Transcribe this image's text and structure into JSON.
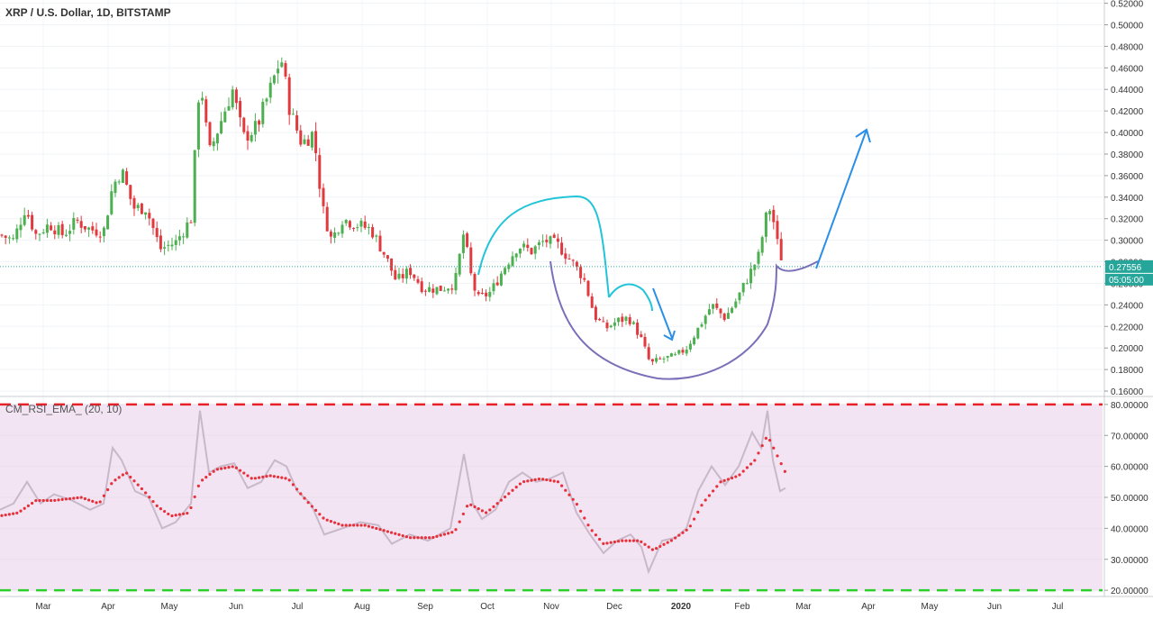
{
  "symbol_label": "XRP / U.S. Dollar, 1D, BITSTAMP",
  "indicator_label": "CM_RSI_EMA_ (20, 10)",
  "colors": {
    "up": "#4caf50",
    "down": "#e0393e",
    "rsi_band": "#f2e4f2",
    "rsi_line": "#c9b8c9",
    "rsi_ema": "#e8303a",
    "level_high": "#e8202a",
    "level_low": "#2ccf2c",
    "price_line": "#26a69a",
    "price_badge": "#26a69a",
    "drawing_teal": "#22c4d8",
    "drawing_blue": "#2a8fe8",
    "drawing_purple": "#7a6fb8"
  },
  "chart_data": [
    {
      "type": "candlestick",
      "title": "XRP / U.S. Dollar, 1D, BITSTAMP",
      "x_ticks": [
        "Mar",
        "Apr",
        "May",
        "Jun",
        "Jul",
        "Aug",
        "Sep",
        "Oct",
        "Nov",
        "Dec",
        "2020",
        "Feb",
        "Mar",
        "Apr",
        "May",
        "Jun",
        "Jul"
      ],
      "y_ticks": [
        "0.52000",
        "0.50000",
        "0.48000",
        "0.46000",
        "0.44000",
        "0.42000",
        "0.40000",
        "0.38000",
        "0.36000",
        "0.34000",
        "0.32000",
        "0.30000",
        "0.28000",
        "0.26000",
        "0.24000",
        "0.22000",
        "0.20000",
        "0.18000",
        "0.16000"
      ],
      "ylim": [
        0.155,
        0.523
      ],
      "last_price": "0.27556",
      "countdown": "05:05:00",
      "close_series": [
        {
          "x": 0,
          "y": 0.305
        },
        {
          "x": 15,
          "y": 0.3
        },
        {
          "x": 28,
          "y": 0.33
        },
        {
          "x": 40,
          "y": 0.305
        },
        {
          "x": 55,
          "y": 0.315
        },
        {
          "x": 70,
          "y": 0.305
        },
        {
          "x": 85,
          "y": 0.318
        },
        {
          "x": 100,
          "y": 0.31
        },
        {
          "x": 115,
          "y": 0.308
        },
        {
          "x": 125,
          "y": 0.35
        },
        {
          "x": 135,
          "y": 0.365
        },
        {
          "x": 148,
          "y": 0.33
        },
        {
          "x": 162,
          "y": 0.33
        },
        {
          "x": 178,
          "y": 0.292
        },
        {
          "x": 195,
          "y": 0.298
        },
        {
          "x": 212,
          "y": 0.32
        },
        {
          "x": 222,
          "y": 0.455
        },
        {
          "x": 232,
          "y": 0.38
        },
        {
          "x": 245,
          "y": 0.41
        },
        {
          "x": 258,
          "y": 0.44
        },
        {
          "x": 270,
          "y": 0.395
        },
        {
          "x": 285,
          "y": 0.405
        },
        {
          "x": 298,
          "y": 0.435
        },
        {
          "x": 312,
          "y": 0.47
        },
        {
          "x": 322,
          "y": 0.42
        },
        {
          "x": 335,
          "y": 0.39
        },
        {
          "x": 348,
          "y": 0.4
        },
        {
          "x": 358,
          "y": 0.33
        },
        {
          "x": 368,
          "y": 0.3
        },
        {
          "x": 380,
          "y": 0.32
        },
        {
          "x": 395,
          "y": 0.315
        },
        {
          "x": 412,
          "y": 0.31
        },
        {
          "x": 428,
          "y": 0.285
        },
        {
          "x": 440,
          "y": 0.262
        },
        {
          "x": 455,
          "y": 0.272
        },
        {
          "x": 470,
          "y": 0.255
        },
        {
          "x": 490,
          "y": 0.255
        },
        {
          "x": 505,
          "y": 0.26
        },
        {
          "x": 515,
          "y": 0.308
        },
        {
          "x": 522,
          "y": 0.27
        },
        {
          "x": 530,
          "y": 0.245
        },
        {
          "x": 545,
          "y": 0.252
        },
        {
          "x": 560,
          "y": 0.275
        },
        {
          "x": 575,
          "y": 0.295
        },
        {
          "x": 590,
          "y": 0.29
        },
        {
          "x": 605,
          "y": 0.3
        },
        {
          "x": 620,
          "y": 0.295
        },
        {
          "x": 635,
          "y": 0.28
        },
        {
          "x": 648,
          "y": 0.265
        },
        {
          "x": 660,
          "y": 0.23
        },
        {
          "x": 672,
          "y": 0.218
        },
        {
          "x": 685,
          "y": 0.225
        },
        {
          "x": 698,
          "y": 0.228
        },
        {
          "x": 710,
          "y": 0.212
        },
        {
          "x": 722,
          "y": 0.185
        },
        {
          "x": 735,
          "y": 0.19
        },
        {
          "x": 750,
          "y": 0.192
        },
        {
          "x": 762,
          "y": 0.2
        },
        {
          "x": 775,
          "y": 0.218
        },
        {
          "x": 790,
          "y": 0.24
        },
        {
          "x": 805,
          "y": 0.228
        },
        {
          "x": 818,
          "y": 0.245
        },
        {
          "x": 830,
          "y": 0.265
        },
        {
          "x": 842,
          "y": 0.285
        },
        {
          "x": 850,
          "y": 0.32
        },
        {
          "x": 856,
          "y": 0.332
        },
        {
          "x": 862,
          "y": 0.3
        },
        {
          "x": 870,
          "y": 0.276
        }
      ]
    },
    {
      "type": "line",
      "title": "CM_RSI_EMA_ (20, 10)",
      "y_ticks": [
        "80.00000",
        "70.00000",
        "60.00000",
        "50.00000",
        "40.00000",
        "30.00000",
        "20.00000"
      ],
      "ylim": [
        18,
        82
      ],
      "levels": [
        80,
        20
      ],
      "series": [
        {
          "name": "RSI",
          "points": [
            {
              "x": 0,
              "y": 46
            },
            {
              "x": 15,
              "y": 48
            },
            {
              "x": 30,
              "y": 55
            },
            {
              "x": 45,
              "y": 48
            },
            {
              "x": 60,
              "y": 51
            },
            {
              "x": 80,
              "y": 49
            },
            {
              "x": 100,
              "y": 46
            },
            {
              "x": 115,
              "y": 48
            },
            {
              "x": 125,
              "y": 66
            },
            {
              "x": 135,
              "y": 62
            },
            {
              "x": 150,
              "y": 52
            },
            {
              "x": 165,
              "y": 50
            },
            {
              "x": 180,
              "y": 40
            },
            {
              "x": 195,
              "y": 42
            },
            {
              "x": 212,
              "y": 48
            },
            {
              "x": 222,
              "y": 78
            },
            {
              "x": 232,
              "y": 58
            },
            {
              "x": 245,
              "y": 60
            },
            {
              "x": 260,
              "y": 61
            },
            {
              "x": 275,
              "y": 53
            },
            {
              "x": 290,
              "y": 55
            },
            {
              "x": 305,
              "y": 62
            },
            {
              "x": 318,
              "y": 60
            },
            {
              "x": 330,
              "y": 52
            },
            {
              "x": 345,
              "y": 48
            },
            {
              "x": 360,
              "y": 38
            },
            {
              "x": 380,
              "y": 40
            },
            {
              "x": 400,
              "y": 42
            },
            {
              "x": 420,
              "y": 41
            },
            {
              "x": 435,
              "y": 35
            },
            {
              "x": 455,
              "y": 38
            },
            {
              "x": 475,
              "y": 36
            },
            {
              "x": 500,
              "y": 40
            },
            {
              "x": 515,
              "y": 64
            },
            {
              "x": 525,
              "y": 48
            },
            {
              "x": 535,
              "y": 43
            },
            {
              "x": 550,
              "y": 46
            },
            {
              "x": 565,
              "y": 55
            },
            {
              "x": 580,
              "y": 58
            },
            {
              "x": 595,
              "y": 55
            },
            {
              "x": 610,
              "y": 56
            },
            {
              "x": 625,
              "y": 58
            },
            {
              "x": 640,
              "y": 45
            },
            {
              "x": 655,
              "y": 38
            },
            {
              "x": 670,
              "y": 32
            },
            {
              "x": 685,
              "y": 36
            },
            {
              "x": 700,
              "y": 38
            },
            {
              "x": 712,
              "y": 34
            },
            {
              "x": 720,
              "y": 26
            },
            {
              "x": 735,
              "y": 36
            },
            {
              "x": 750,
              "y": 37
            },
            {
              "x": 762,
              "y": 40
            },
            {
              "x": 775,
              "y": 52
            },
            {
              "x": 790,
              "y": 60
            },
            {
              "x": 805,
              "y": 54
            },
            {
              "x": 820,
              "y": 60
            },
            {
              "x": 835,
              "y": 71
            },
            {
              "x": 845,
              "y": 66
            },
            {
              "x": 852,
              "y": 78
            },
            {
              "x": 858,
              "y": 62
            },
            {
              "x": 866,
              "y": 52
            },
            {
              "x": 872,
              "y": 53
            }
          ]
        },
        {
          "name": "EMA",
          "points": [
            {
              "x": 0,
              "y": 44
            },
            {
              "x": 20,
              "y": 45
            },
            {
              "x": 40,
              "y": 49
            },
            {
              "x": 60,
              "y": 49
            },
            {
              "x": 90,
              "y": 50
            },
            {
              "x": 110,
              "y": 48
            },
            {
              "x": 125,
              "y": 55
            },
            {
              "x": 140,
              "y": 58
            },
            {
              "x": 160,
              "y": 52
            },
            {
              "x": 175,
              "y": 47
            },
            {
              "x": 190,
              "y": 44
            },
            {
              "x": 210,
              "y": 45
            },
            {
              "x": 222,
              "y": 55
            },
            {
              "x": 240,
              "y": 59
            },
            {
              "x": 260,
              "y": 60
            },
            {
              "x": 280,
              "y": 56
            },
            {
              "x": 300,
              "y": 57
            },
            {
              "x": 320,
              "y": 56
            },
            {
              "x": 340,
              "y": 49
            },
            {
              "x": 360,
              "y": 43
            },
            {
              "x": 380,
              "y": 41
            },
            {
              "x": 405,
              "y": 41
            },
            {
              "x": 430,
              "y": 39
            },
            {
              "x": 455,
              "y": 37
            },
            {
              "x": 480,
              "y": 37
            },
            {
              "x": 505,
              "y": 39
            },
            {
              "x": 520,
              "y": 48
            },
            {
              "x": 540,
              "y": 45
            },
            {
              "x": 560,
              "y": 50
            },
            {
              "x": 580,
              "y": 55
            },
            {
              "x": 600,
              "y": 56
            },
            {
              "x": 620,
              "y": 55
            },
            {
              "x": 640,
              "y": 48
            },
            {
              "x": 655,
              "y": 40
            },
            {
              "x": 670,
              "y": 35
            },
            {
              "x": 690,
              "y": 36
            },
            {
              "x": 710,
              "y": 36
            },
            {
              "x": 725,
              "y": 33
            },
            {
              "x": 745,
              "y": 36
            },
            {
              "x": 765,
              "y": 40
            },
            {
              "x": 780,
              "y": 48
            },
            {
              "x": 800,
              "y": 55
            },
            {
              "x": 820,
              "y": 57
            },
            {
              "x": 838,
              "y": 62
            },
            {
              "x": 852,
              "y": 70
            },
            {
              "x": 872,
              "y": 58
            }
          ]
        }
      ]
    }
  ]
}
